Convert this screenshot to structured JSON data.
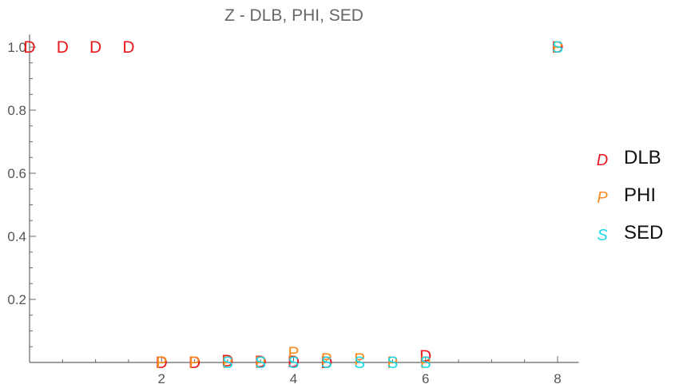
{
  "chart_data": {
    "type": "scatter",
    "title": "Z - DLB, PHI, SED",
    "xlabel": "",
    "ylabel": "",
    "xlim": [
      0,
      8.2
    ],
    "ylim": [
      0,
      1.04
    ],
    "x_ticks": [
      2,
      4,
      6,
      8
    ],
    "y_ticks": [
      0.2,
      0.4,
      0.6,
      0.8,
      1.0
    ],
    "y_tick_labels": [
      "0.2",
      "0.4",
      "0.6",
      "0.8",
      "1.0"
    ],
    "grid": false,
    "legend_position": "right",
    "series": [
      {
        "name": "DLB",
        "marker": "D",
        "color": "#e8191c",
        "points": [
          [
            0,
            1.0
          ],
          [
            0.5,
            1.0
          ],
          [
            1.0,
            1.0
          ],
          [
            1.5,
            1.0
          ],
          [
            2.0,
            0.0
          ],
          [
            2.5,
            0.0
          ],
          [
            3.0,
            0.005
          ],
          [
            3.5,
            0.003
          ],
          [
            4.0,
            0.003
          ],
          [
            4.5,
            0.0
          ],
          [
            6.0,
            0.02
          ],
          [
            8.0,
            1.0
          ]
        ]
      },
      {
        "name": "PHI",
        "marker": "P",
        "color": "#f58a1f",
        "points": [
          [
            2.0,
            0.0
          ],
          [
            2.5,
            0.0
          ],
          [
            3.0,
            0.0
          ],
          [
            3.5,
            0.0
          ],
          [
            4.0,
            0.03
          ],
          [
            4.5,
            0.01
          ],
          [
            5.0,
            0.01
          ],
          [
            5.5,
            0.0
          ],
          [
            6.0,
            0.0
          ],
          [
            8.0,
            1.0
          ]
        ]
      },
      {
        "name": "SED",
        "marker": "S",
        "color": "#1fd8e8",
        "points": [
          [
            3.0,
            0.0
          ],
          [
            3.5,
            0.0
          ],
          [
            4.0,
            0.0
          ],
          [
            4.5,
            0.0
          ],
          [
            5.0,
            0.0
          ],
          [
            5.5,
            0.0
          ],
          [
            6.0,
            0.0
          ],
          [
            8.0,
            1.0
          ]
        ]
      }
    ]
  }
}
